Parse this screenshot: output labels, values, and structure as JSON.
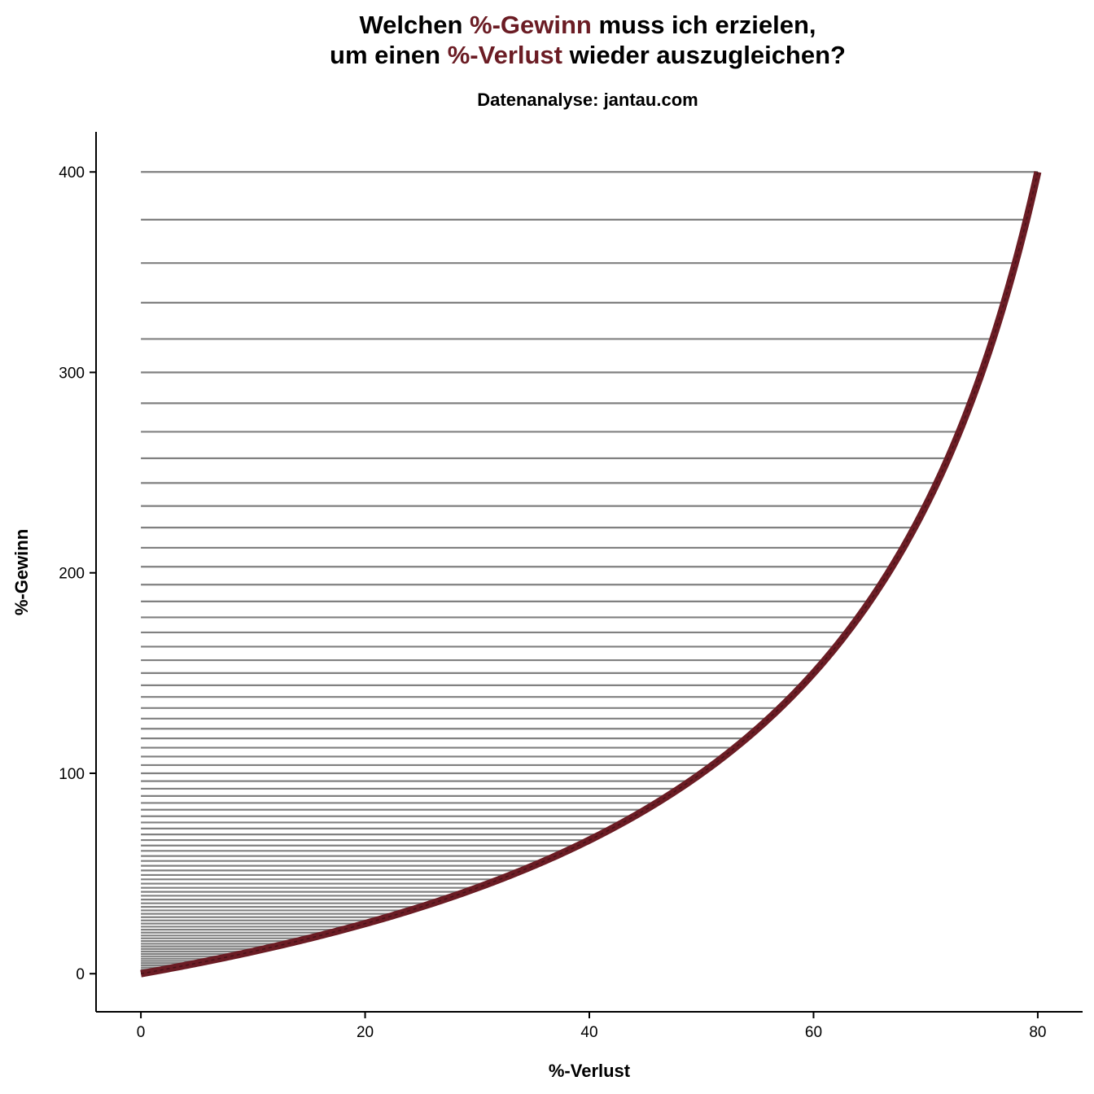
{
  "chart_data": {
    "type": "line",
    "title_parts": [
      "Welchen ",
      "%-Gewinn",
      " muss ich erzielen,",
      "um einen ",
      "%-Verlust",
      " wieder auszugleichen?"
    ],
    "subtitle": "Datenanalyse: jantau.com",
    "xlabel": "%-Verlust",
    "ylabel": "%-Gewinn",
    "xlim": [
      -4,
      84
    ],
    "ylim": [
      -19,
      420
    ],
    "x_ticks": [
      0,
      20,
      40,
      60,
      80
    ],
    "x_tick_labels": [
      "0",
      "20",
      "40",
      "60",
      "80"
    ],
    "y_ticks": [
      0,
      100,
      200,
      300,
      400
    ],
    "y_tick_labels": [
      "0",
      "100",
      "200",
      "300",
      "400"
    ],
    "grid": false,
    "series": [
      {
        "formula": "gain = 100 * loss / (100 - loss)",
        "x": [
          0,
          5,
          10,
          15,
          20,
          25,
          30,
          35,
          40,
          45,
          50,
          55,
          60,
          65,
          70,
          75,
          80
        ],
        "y": [
          0,
          5.26,
          11.11,
          17.65,
          25,
          33.33,
          42.86,
          53.85,
          66.67,
          81.82,
          100,
          122.22,
          150,
          185.71,
          233.33,
          300,
          400
        ],
        "color": "#6b1c24"
      }
    ],
    "reference_lines": {
      "loss_values": [
        0,
        1,
        2,
        3,
        4,
        5,
        6,
        7,
        8,
        9,
        10,
        11,
        12,
        13,
        14,
        15,
        16,
        17,
        18,
        19,
        20,
        21,
        22,
        23,
        24,
        25,
        26,
        27,
        28,
        29,
        30,
        31,
        32,
        33,
        34,
        35,
        36,
        37,
        38,
        39,
        40,
        41,
        42,
        43,
        44,
        45,
        46,
        47,
        48,
        49,
        50,
        51,
        52,
        53,
        54,
        55,
        56,
        57,
        58,
        59,
        60,
        61,
        62,
        63,
        64,
        65,
        66,
        67,
        68,
        69,
        70,
        71,
        72,
        73,
        74,
        75,
        76,
        77,
        78,
        79,
        80
      ],
      "color": "#808080"
    }
  }
}
